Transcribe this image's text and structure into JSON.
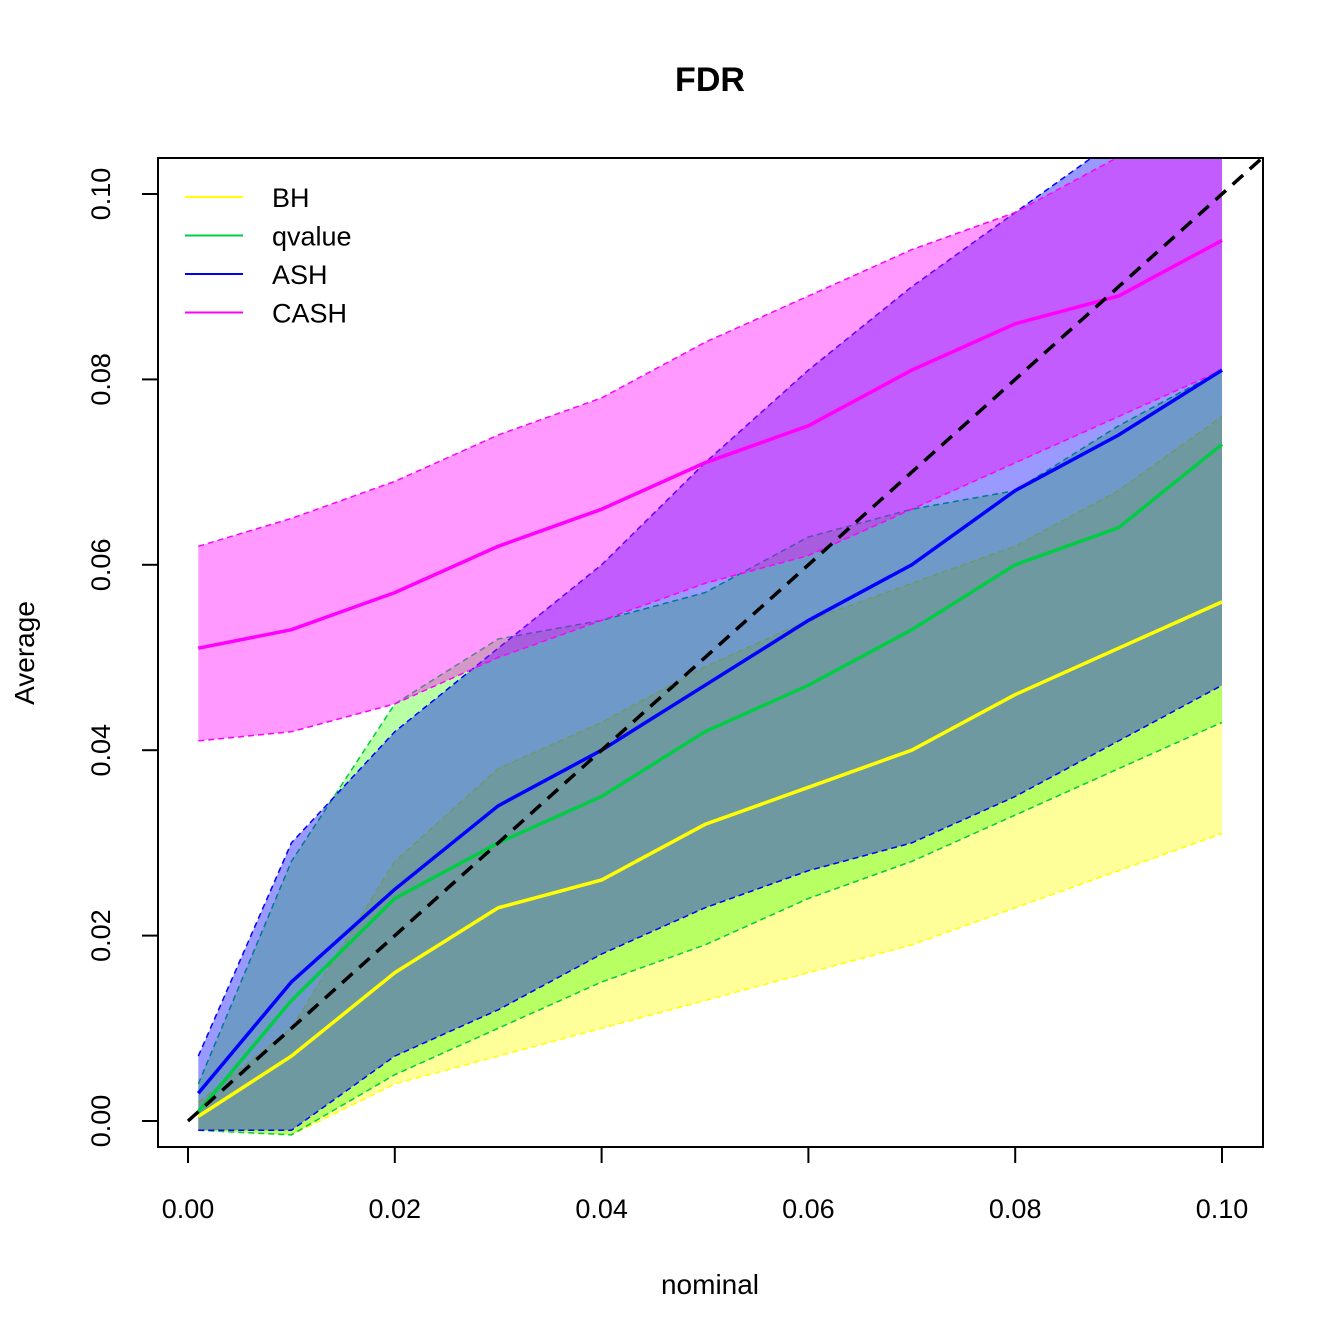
{
  "chart_data": {
    "type": "line",
    "title": "FDR",
    "xlabel": "nominal",
    "ylabel": "Average",
    "xlim": [
      0,
      0.1
    ],
    "ylim": [
      0,
      0.1
    ],
    "x_ticks": [
      "0.00",
      "0.02",
      "0.04",
      "0.06",
      "0.08",
      "0.10"
    ],
    "y_ticks": [
      "0.00",
      "0.02",
      "0.04",
      "0.06",
      "0.08",
      "0.10"
    ],
    "legend_position": "top-left",
    "reference_line": {
      "name": "y = x",
      "color": "#000000",
      "style": "dashed"
    },
    "x": [
      0.001,
      0.01,
      0.02,
      0.03,
      0.04,
      0.05,
      0.06,
      0.07,
      0.08,
      0.09,
      0.1
    ],
    "series": [
      {
        "name": "BH",
        "color": "#FFFF00",
        "band_fill": "#FFFF00",
        "band_opacity": 0.4,
        "mean": [
          0.0005,
          0.007,
          0.016,
          0.023,
          0.026,
          0.032,
          0.036,
          0.04,
          0.046,
          0.051,
          0.056
        ],
        "lower": [
          -0.001,
          -0.0015,
          0.004,
          0.007,
          0.01,
          0.013,
          0.016,
          0.019,
          0.023,
          0.027,
          0.031
        ],
        "upper": [
          0.002,
          0.01,
          0.028,
          0.038,
          0.043,
          0.049,
          0.054,
          0.058,
          0.062,
          0.068,
          0.076
        ]
      },
      {
        "name": "qvalue",
        "color": "#00CC44",
        "band_fill": "#33FF00",
        "band_opacity": 0.35,
        "mean": [
          0.001,
          0.013,
          0.024,
          0.03,
          0.035,
          0.042,
          0.047,
          0.053,
          0.06,
          0.064,
          0.073
        ],
        "lower": [
          -0.001,
          -0.0015,
          0.005,
          0.01,
          0.015,
          0.019,
          0.024,
          0.028,
          0.033,
          0.038,
          0.043
        ],
        "upper": [
          0.004,
          0.028,
          0.045,
          0.052,
          0.054,
          0.057,
          0.063,
          0.066,
          0.068,
          0.075,
          0.081
        ]
      },
      {
        "name": "ASH",
        "color": "#0000FF",
        "band_fill": "#0000FF",
        "band_opacity": 0.4,
        "mean": [
          0.003,
          0.015,
          0.025,
          0.034,
          0.04,
          0.047,
          0.054,
          0.06,
          0.068,
          0.074,
          0.081
        ],
        "lower": [
          -0.001,
          -0.001,
          0.007,
          0.012,
          0.018,
          0.023,
          0.027,
          0.03,
          0.035,
          0.041,
          0.047
        ],
        "upper": [
          0.007,
          0.03,
          0.042,
          0.051,
          0.06,
          0.071,
          0.081,
          0.09,
          0.098,
          0.106,
          0.112
        ]
      },
      {
        "name": "CASH",
        "color": "#FF00FF",
        "band_fill": "#FF00FF",
        "band_opacity": 0.4,
        "mean": [
          0.051,
          0.053,
          0.057,
          0.062,
          0.066,
          0.071,
          0.075,
          0.081,
          0.086,
          0.089,
          0.095
        ],
        "lower": [
          0.041,
          0.042,
          0.045,
          0.05,
          0.054,
          0.058,
          0.061,
          0.066,
          0.071,
          0.076,
          0.081
        ],
        "upper": [
          0.062,
          0.065,
          0.069,
          0.074,
          0.078,
          0.084,
          0.089,
          0.094,
          0.098,
          0.104,
          0.106
        ]
      }
    ]
  }
}
